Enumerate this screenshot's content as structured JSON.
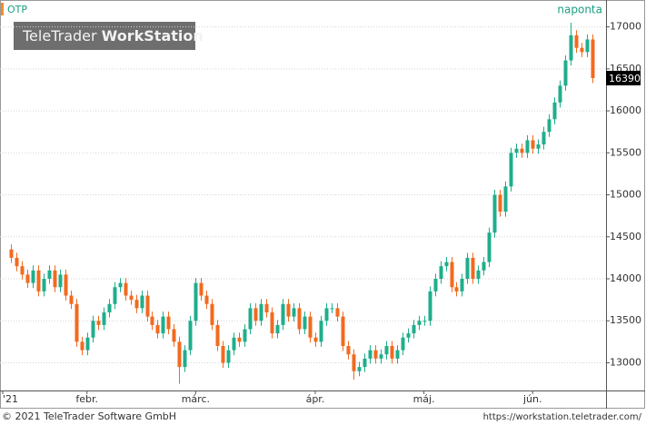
{
  "chart_data": {
    "type": "candlestick",
    "symbol": "OTP",
    "period": "naponta",
    "watermark": {
      "brand": "TeleTrader",
      "product": "WorkStation"
    },
    "footer_left": "© 2021 TeleTrader Software GmbH",
    "footer_right": "https://workstation.teletrader.com/",
    "up_color": "#1fae8c",
    "down_color": "#f26a1f",
    "grid": true,
    "xlim": [
      -2,
      109.5
    ],
    "xticks": [
      {
        "value": -1.5,
        "label": "'21"
      },
      {
        "value": 14,
        "label": "febr."
      },
      {
        "value": 34,
        "label": "márc."
      },
      {
        "value": 56,
        "label": "ápr."
      },
      {
        "value": 76,
        "label": "máj."
      },
      {
        "value": 96,
        "label": "jún."
      }
    ],
    "ylim": [
      12670,
      17320
    ],
    "yticks": [
      13000,
      13500,
      14000,
      14500,
      15000,
      15500,
      16000,
      16500,
      17000
    ],
    "open": [
      14350,
      14250,
      14150,
      14050,
      13950,
      14100,
      13850,
      14000,
      14100,
      13900,
      14050,
      13800,
      13700,
      13250,
      13150,
      13300,
      13500,
      13450,
      13600,
      13700,
      13900,
      13950,
      13800,
      13750,
      13650,
      13800,
      13550,
      13450,
      13350,
      13550,
      13400,
      13250,
      12950,
      13150,
      13500,
      13950,
      13800,
      13700,
      13450,
      13200,
      13000,
      13150,
      13300,
      13250,
      13400,
      13650,
      13500,
      13700,
      13600,
      13350,
      13450,
      13700,
      13550,
      13650,
      13400,
      13550,
      13300,
      13250,
      13500,
      13650,
      13650,
      13550,
      13200,
      13100,
      12900,
      12950,
      13050,
      13150,
      13050,
      13100,
      13200,
      13050,
      13150,
      13300,
      13350,
      13450,
      13500,
      13500,
      13850,
      14000,
      14150,
      14200,
      13900,
      13850,
      14000,
      14250,
      14000,
      14100,
      14200,
      14550,
      15000,
      14800,
      15100,
      15500,
      15550,
      15500,
      15650,
      15550,
      15600,
      15750,
      15900,
      16100,
      16300,
      16600,
      16900,
      16750,
      16700,
      16850
    ],
    "high": [
      14410,
      14310,
      14210,
      14110,
      14160,
      14160,
      14060,
      14160,
      14160,
      14110,
      14110,
      13860,
      13760,
      13310,
      13360,
      13560,
      13560,
      13660,
      13760,
      13960,
      14010,
      14010,
      13860,
      13810,
      13860,
      13860,
      13610,
      13510,
      13610,
      13610,
      13460,
      13310,
      13210,
      13560,
      14010,
      14010,
      13860,
      13760,
      13510,
      13260,
      13210,
      13360,
      13360,
      13460,
      13710,
      13710,
      13760,
      13760,
      13660,
      13510,
      13760,
      13760,
      13710,
      13710,
      13610,
      13610,
      13360,
      13560,
      13710,
      13710,
      13710,
      13610,
      13260,
      13160,
      13010,
      13110,
      13210,
      13210,
      13160,
      13260,
      13260,
      13210,
      13360,
      13410,
      13510,
      13560,
      13560,
      13910,
      14060,
      14210,
      14260,
      14260,
      13960,
      14060,
      14310,
      14310,
      14160,
      14260,
      14610,
      15060,
      15060,
      15160,
      15560,
      15610,
      15610,
      15710,
      15710,
      15660,
      15810,
      15960,
      16160,
      16360,
      16660,
      17050,
      16960,
      16810,
      16910,
      16910
    ],
    "low": [
      14190,
      14090,
      13990,
      13890,
      13890,
      13790,
      13790,
      13940,
      13840,
      13840,
      13740,
      13640,
      13190,
      13090,
      13090,
      13240,
      13390,
      13390,
      13540,
      13640,
      13840,
      13740,
      13690,
      13590,
      13590,
      13490,
      13390,
      13290,
      13290,
      13340,
      13190,
      12750,
      12890,
      13090,
      13440,
      13740,
      13640,
      13390,
      13140,
      12940,
      12940,
      13090,
      13190,
      13190,
      13340,
      13440,
      13440,
      13540,
      13290,
      13290,
      13390,
      13490,
      13490,
      13340,
      13340,
      13240,
      13190,
      13190,
      13440,
      13590,
      13490,
      13140,
      13040,
      12800,
      12840,
      12890,
      12990,
      12990,
      12990,
      13040,
      12990,
      12990,
      13090,
      13240,
      13290,
      13390,
      13440,
      13440,
      13790,
      13940,
      14090,
      13840,
      13790,
      13790,
      13940,
      13940,
      13940,
      14040,
      14140,
      14490,
      14740,
      14740,
      15040,
      15440,
      15440,
      15440,
      15490,
      15490,
      15540,
      15690,
      15840,
      16040,
      16240,
      16540,
      16690,
      16640,
      16640,
      16330
    ],
    "close": [
      14250,
      14150,
      14050,
      13950,
      14100,
      13850,
      14000,
      14100,
      13900,
      14050,
      13800,
      13700,
      13250,
      13150,
      13300,
      13500,
      13450,
      13600,
      13700,
      13900,
      13950,
      13800,
      13750,
      13650,
      13800,
      13550,
      13450,
      13350,
      13550,
      13400,
      13250,
      12950,
      13150,
      13500,
      13950,
      13800,
      13700,
      13450,
      13200,
      13000,
      13150,
      13300,
      13250,
      13400,
      13650,
      13500,
      13700,
      13600,
      13350,
      13450,
      13700,
      13550,
      13650,
      13400,
      13550,
      13300,
      13250,
      13500,
      13650,
      13650,
      13550,
      13200,
      13100,
      12900,
      12950,
      13050,
      13150,
      13050,
      13100,
      13200,
      13050,
      13150,
      13300,
      13350,
      13450,
      13500,
      13500,
      13850,
      14000,
      14150,
      14200,
      13900,
      13850,
      14000,
      14250,
      14000,
      14100,
      14200,
      14550,
      15000,
      14800,
      15100,
      15500,
      15550,
      15500,
      15650,
      15550,
      15600,
      15750,
      15900,
      16100,
      16300,
      16600,
      16900,
      16750,
      16700,
      16850,
      16390
    ]
  }
}
